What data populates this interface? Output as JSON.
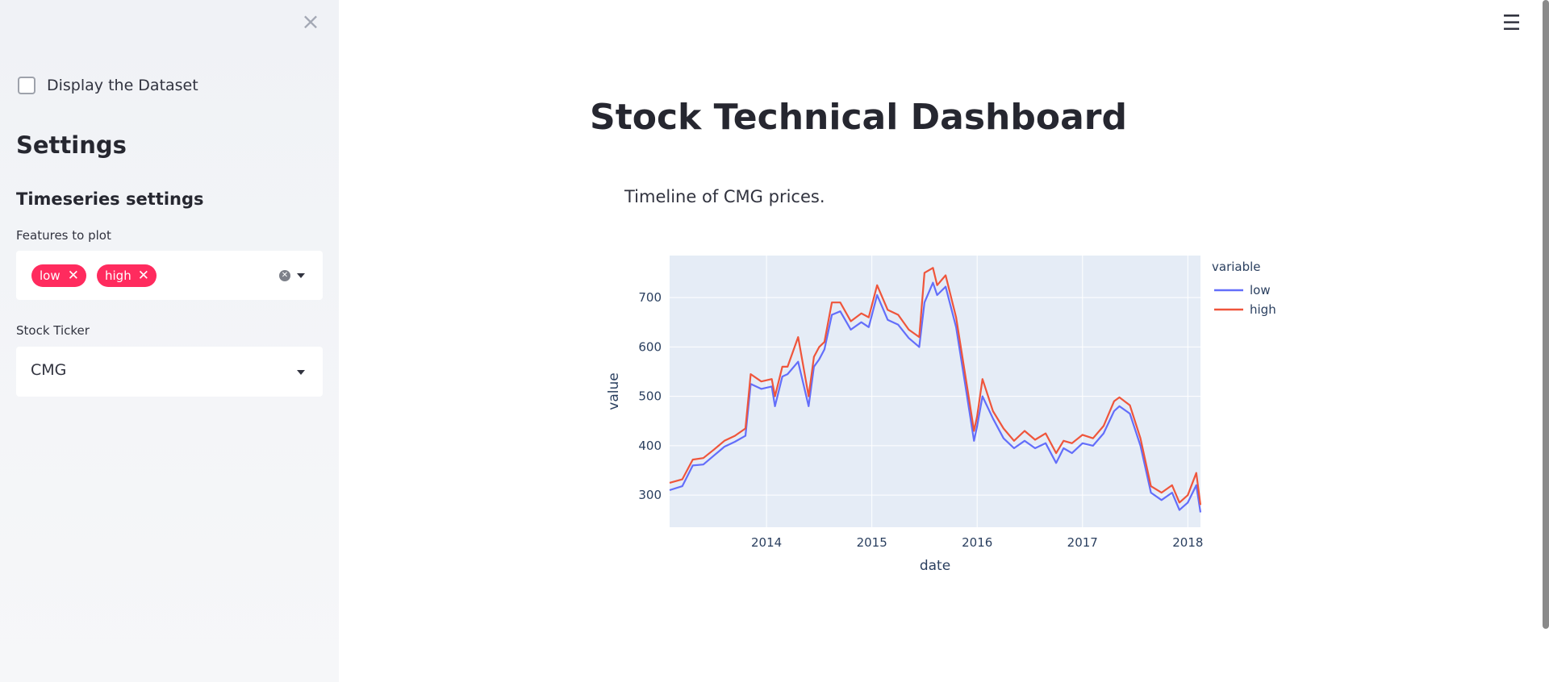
{
  "sidebar": {
    "close_icon": "×",
    "display_dataset_label": "Display the Dataset",
    "display_dataset_checked": false,
    "settings_title": "Settings",
    "timeseries_title": "Timeseries settings",
    "features_label": "Features to plot",
    "features_selected": [
      "low",
      "high"
    ],
    "ticker_label": "Stock Ticker",
    "ticker_value": "CMG"
  },
  "header": {
    "menu_icon": "☰"
  },
  "main": {
    "title": "Stock Technical Dashboard",
    "caption": "Timeline of CMG prices."
  },
  "chart_data": {
    "type": "line",
    "xlabel": "date",
    "ylabel": "value",
    "xlim": [
      2013.08,
      2018.12
    ],
    "ylim": [
      235,
      785
    ],
    "x_ticks": [
      2014,
      2015,
      2016,
      2017,
      2018
    ],
    "x_tick_labels": [
      "2014",
      "2015",
      "2016",
      "2017",
      "2018"
    ],
    "y_ticks": [
      300,
      400,
      500,
      600,
      700
    ],
    "y_tick_labels": [
      "300",
      "400",
      "500",
      "600",
      "700"
    ],
    "grid": true,
    "legend_title": "variable",
    "legend_position": "right",
    "series": [
      {
        "name": "low",
        "color": "#636efa",
        "x": [
          2013.08,
          2013.2,
          2013.3,
          2013.4,
          2013.5,
          2013.6,
          2013.7,
          2013.8,
          2013.85,
          2013.95,
          2014.05,
          2014.08,
          2014.15,
          2014.2,
          2014.3,
          2014.4,
          2014.45,
          2014.5,
          2014.55,
          2014.62,
          2014.7,
          2014.8,
          2014.9,
          2014.97,
          2015.05,
          2015.15,
          2015.25,
          2015.35,
          2015.45,
          2015.5,
          2015.58,
          2015.62,
          2015.7,
          2015.8,
          2015.9,
          2015.97,
          2016.0,
          2016.05,
          2016.15,
          2016.25,
          2016.35,
          2016.45,
          2016.55,
          2016.65,
          2016.75,
          2016.82,
          2016.9,
          2017.0,
          2017.1,
          2017.2,
          2017.3,
          2017.35,
          2017.45,
          2017.55,
          2017.65,
          2017.75,
          2017.85,
          2017.92,
          2018.0,
          2018.08,
          2018.12
        ],
        "y": [
          310,
          318,
          360,
          362,
          380,
          398,
          408,
          420,
          525,
          515,
          520,
          480,
          540,
          545,
          570,
          480,
          560,
          575,
          595,
          665,
          672,
          635,
          650,
          640,
          705,
          655,
          645,
          618,
          600,
          690,
          730,
          705,
          722,
          640,
          505,
          410,
          440,
          500,
          455,
          415,
          395,
          410,
          395,
          405,
          365,
          395,
          385,
          405,
          400,
          425,
          470,
          480,
          465,
          400,
          305,
          290,
          305,
          270,
          285,
          320,
          265
        ]
      },
      {
        "name": "high",
        "color": "#ef553b",
        "x": [
          2013.08,
          2013.2,
          2013.3,
          2013.4,
          2013.5,
          2013.6,
          2013.7,
          2013.8,
          2013.85,
          2013.95,
          2014.05,
          2014.08,
          2014.15,
          2014.2,
          2014.3,
          2014.4,
          2014.45,
          2014.5,
          2014.55,
          2014.62,
          2014.7,
          2014.8,
          2014.9,
          2014.97,
          2015.05,
          2015.15,
          2015.25,
          2015.35,
          2015.45,
          2015.5,
          2015.58,
          2015.62,
          2015.7,
          2015.8,
          2015.9,
          2015.97,
          2016.0,
          2016.05,
          2016.15,
          2016.25,
          2016.35,
          2016.45,
          2016.55,
          2016.65,
          2016.75,
          2016.82,
          2016.9,
          2017.0,
          2017.1,
          2017.2,
          2017.3,
          2017.35,
          2017.45,
          2017.55,
          2017.65,
          2017.75,
          2017.85,
          2017.92,
          2018.0,
          2018.08,
          2018.12
        ],
        "y": [
          325,
          332,
          372,
          375,
          392,
          410,
          420,
          435,
          545,
          530,
          535,
          500,
          560,
          560,
          620,
          500,
          580,
          600,
          610,
          690,
          690,
          652,
          668,
          660,
          725,
          675,
          665,
          635,
          620,
          750,
          760,
          725,
          745,
          660,
          525,
          430,
          460,
          535,
          470,
          435,
          410,
          430,
          412,
          425,
          385,
          410,
          405,
          422,
          415,
          440,
          490,
          498,
          482,
          415,
          318,
          305,
          320,
          285,
          300,
          345,
          280
        ]
      }
    ]
  }
}
